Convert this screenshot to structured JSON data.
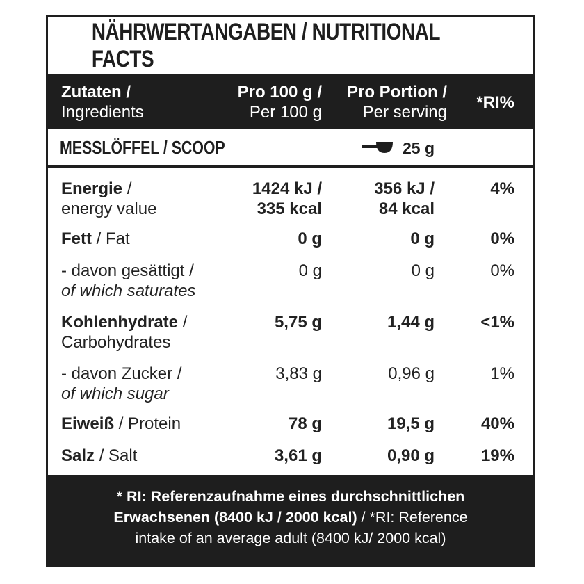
{
  "title": "NÄHRWERTANGABEN / NUTRITIONAL FACTS",
  "header": {
    "ingredients_de": "Zutaten /",
    "ingredients_en": "Ingredients",
    "per100_de": "Pro 100 g /",
    "per100_en": "Per 100 g",
    "serving_de": "Pro Portion /",
    "serving_en": "Per serving",
    "ri": "*RI%"
  },
  "scoop": {
    "label": "MESSLÖFFEL / SCOOP",
    "icon": "scoop-icon",
    "value": "25 g"
  },
  "rows": [
    {
      "name_bold": "Energie",
      "name_rest": " /",
      "name_line2": "energy value",
      "line2_italic": false,
      "per100_l1": "1424 kJ /",
      "per100_l2": "335 kcal",
      "serving_l1": "356 kJ /",
      "serving_l2": "84 kcal",
      "ri": "4%",
      "values_bold": true
    },
    {
      "name_bold": "Fett",
      "name_rest": " / Fat",
      "name_line2": "",
      "line2_italic": false,
      "per100_l1": "0 g",
      "per100_l2": "",
      "serving_l1": "0 g",
      "serving_l2": "",
      "ri": "0%",
      "values_bold": true
    },
    {
      "name_bold": "",
      "name_rest": "- davon gesättigt /",
      "name_line2": "of which saturates",
      "line2_italic": true,
      "per100_l1": "0 g",
      "per100_l2": "",
      "serving_l1": "0 g",
      "serving_l2": "",
      "ri": "0%",
      "values_bold": false
    },
    {
      "name_bold": "Kohlenhydrate",
      "name_rest": " /",
      "name_line2": "Carbohydrates",
      "line2_italic": false,
      "per100_l1": "5,75 g",
      "per100_l2": "",
      "serving_l1": "1,44  g",
      "serving_l2": "",
      "ri": "<1%",
      "values_bold": true
    },
    {
      "name_bold": "",
      "name_rest": "- davon Zucker /",
      "name_line2": "of which sugar",
      "line2_italic": true,
      "per100_l1": "3,83 g",
      "per100_l2": "",
      "serving_l1": "0,96 g",
      "serving_l2": "",
      "ri": "1%",
      "values_bold": false
    },
    {
      "name_bold": "Eiweiß",
      "name_rest": " / Protein",
      "name_line2": "",
      "line2_italic": false,
      "per100_l1": "78 g",
      "per100_l2": "",
      "serving_l1": "19,5 g",
      "serving_l2": "",
      "ri": "40%",
      "values_bold": true
    },
    {
      "name_bold": "Salz",
      "name_rest": " / Salt",
      "name_line2": "",
      "line2_italic": false,
      "per100_l1": "3,61 g",
      "per100_l2": "",
      "serving_l1": "0,90 g",
      "serving_l2": "",
      "ri": "19%",
      "values_bold": true
    }
  ],
  "footer": {
    "line1_bold": "* RI: Referenzaufnahme eines durchschnittlichen",
    "line2_bold": "Erwachsenen (8400 kJ / 2000 kcal)",
    "line2_rest": " / *RI: Reference",
    "line3": "intake of an average adult (8400 kJ/ 2000 kcal)"
  },
  "colors": {
    "dark": "#1e1e1e",
    "text": "#222222",
    "background": "#ffffff"
  }
}
